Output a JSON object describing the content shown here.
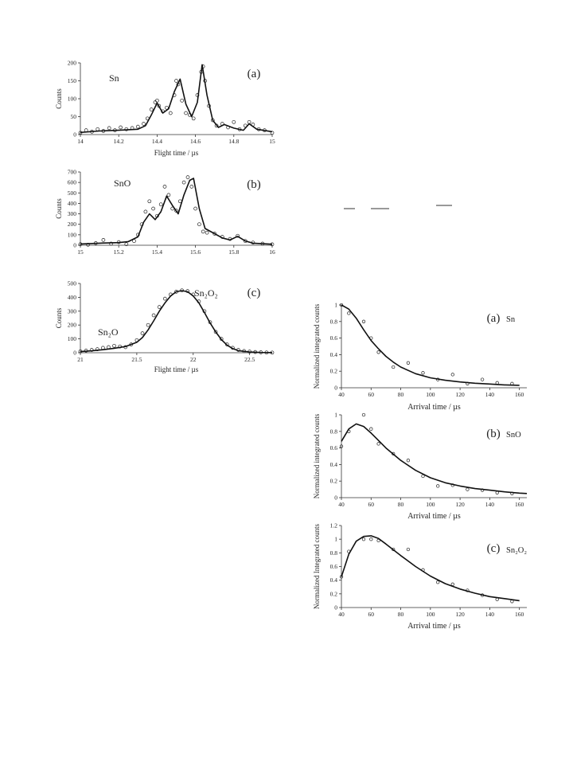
{
  "chart_data": [
    {
      "id": "tof_sn",
      "type": "scatter",
      "panel_label": "(a)",
      "species_label": "Sn",
      "xlabel": "Flight time / µs",
      "ylabel": "Counts",
      "xlim": [
        14,
        15
      ],
      "ylim": [
        0,
        200
      ],
      "xticks": [
        "14",
        "14.2",
        "14.4",
        "14.6",
        "14.8",
        "15"
      ],
      "yticks": [
        "0",
        "50",
        "100",
        "150",
        "200"
      ],
      "series": [
        {
          "style": "markers",
          "x": [
            14.0,
            14.03,
            14.06,
            14.09,
            14.12,
            14.15,
            14.18,
            14.21,
            14.24,
            14.27,
            14.3,
            14.33,
            14.35,
            14.37,
            14.39,
            14.4,
            14.41,
            14.43,
            14.45,
            14.47,
            14.49,
            14.5,
            14.51,
            14.53,
            14.55,
            14.57,
            14.59,
            14.61,
            14.63,
            14.64,
            14.65,
            14.67,
            14.69,
            14.71,
            14.74,
            14.77,
            14.8,
            14.83,
            14.86,
            14.88,
            14.9,
            14.93,
            14.96,
            15.0
          ],
          "y": [
            5,
            12,
            8,
            15,
            10,
            18,
            12,
            20,
            15,
            18,
            22,
            30,
            45,
            70,
            90,
            95,
            80,
            65,
            75,
            60,
            110,
            150,
            140,
            95,
            60,
            55,
            45,
            110,
            175,
            190,
            150,
            80,
            40,
            25,
            30,
            20,
            35,
            15,
            25,
            35,
            28,
            15,
            12,
            5
          ]
        },
        {
          "style": "line",
          "x": [
            14.0,
            14.1,
            14.2,
            14.3,
            14.34,
            14.37,
            14.4,
            14.43,
            14.46,
            14.49,
            14.52,
            14.55,
            14.58,
            14.61,
            14.635,
            14.66,
            14.69,
            14.72,
            14.75,
            14.8,
            14.85,
            14.88,
            14.92,
            15.0
          ],
          "y": [
            6,
            10,
            12,
            15,
            25,
            55,
            88,
            60,
            72,
            120,
            155,
            85,
            50,
            90,
            195,
            110,
            40,
            20,
            28,
            18,
            12,
            30,
            15,
            8
          ]
        }
      ]
    },
    {
      "id": "tof_sno",
      "type": "scatter",
      "panel_label": "(b)",
      "species_label": "SnO",
      "xlabel": "",
      "ylabel": "Counts",
      "xlim": [
        15,
        16
      ],
      "ylim": [
        0,
        700
      ],
      "xticks": [
        "15",
        "15.2",
        "15.4",
        "15.6",
        "15.8",
        "16"
      ],
      "yticks": [
        "0",
        "100",
        "200",
        "300",
        "400",
        "500",
        "600",
        "700"
      ],
      "series": [
        {
          "style": "markers",
          "x": [
            15.0,
            15.04,
            15.08,
            15.12,
            15.16,
            15.2,
            15.24,
            15.28,
            15.3,
            15.32,
            15.34,
            15.36,
            15.38,
            15.4,
            15.42,
            15.44,
            15.46,
            15.48,
            15.5,
            15.52,
            15.54,
            15.56,
            15.58,
            15.6,
            15.62,
            15.64,
            15.66,
            15.7,
            15.74,
            15.78,
            15.82,
            15.86,
            15.9,
            15.95,
            16.0
          ],
          "y": [
            10,
            5,
            20,
            50,
            15,
            30,
            10,
            40,
            100,
            200,
            320,
            420,
            350,
            280,
            390,
            560,
            480,
            350,
            330,
            420,
            600,
            650,
            560,
            350,
            200,
            130,
            120,
            110,
            80,
            60,
            90,
            40,
            25,
            15,
            8
          ]
        },
        {
          "style": "line",
          "x": [
            15.0,
            15.1,
            15.2,
            15.25,
            15.3,
            15.33,
            15.36,
            15.39,
            15.42,
            15.45,
            15.48,
            15.51,
            15.54,
            15.57,
            15.59,
            15.62,
            15.65,
            15.7,
            15.74,
            15.78,
            15.82,
            15.86,
            15.9,
            16.0
          ],
          "y": [
            12,
            20,
            25,
            35,
            80,
            220,
            300,
            245,
            320,
            470,
            380,
            300,
            480,
            620,
            640,
            350,
            160,
            110,
            70,
            50,
            85,
            40,
            20,
            10
          ]
        }
      ]
    },
    {
      "id": "tof_sn2o2",
      "type": "scatter",
      "panel_label": "(c)",
      "species_label": "Sn₂O₂",
      "species_label_2": "Sn₂O",
      "xlabel": "Flight time / µs",
      "ylabel": "Counts",
      "xlim": [
        21,
        22.7
      ],
      "ylim": [
        0,
        500
      ],
      "xticks": [
        "21",
        "21.5",
        "22",
        "22.5"
      ],
      "yticks": [
        "0",
        "100",
        "200",
        "300",
        "400",
        "500"
      ],
      "series": [
        {
          "style": "markers",
          "x": [
            21.0,
            21.05,
            21.1,
            21.15,
            21.2,
            21.25,
            21.3,
            21.35,
            21.4,
            21.45,
            21.5,
            21.55,
            21.6,
            21.65,
            21.7,
            21.75,
            21.8,
            21.85,
            21.9,
            21.95,
            22.0,
            22.05,
            22.1,
            22.15,
            22.2,
            22.25,
            22.3,
            22.35,
            22.4,
            22.45,
            22.5,
            22.55,
            22.6,
            22.65,
            22.7
          ],
          "y": [
            10,
            15,
            20,
            25,
            35,
            40,
            50,
            45,
            40,
            60,
            90,
            140,
            200,
            270,
            330,
            390,
            420,
            440,
            450,
            445,
            420,
            370,
            300,
            220,
            150,
            100,
            60,
            35,
            20,
            12,
            8,
            5,
            3,
            2,
            1
          ]
        },
        {
          "style": "line",
          "x": [
            21.0,
            21.1,
            21.2,
            21.3,
            21.4,
            21.5,
            21.55,
            21.6,
            21.65,
            21.7,
            21.75,
            21.8,
            21.85,
            21.9,
            21.95,
            22.0,
            22.05,
            22.1,
            22.15,
            22.2,
            22.25,
            22.3,
            22.35,
            22.4,
            22.5,
            22.6,
            22.7
          ],
          "y": [
            8,
            14,
            22,
            32,
            45,
            75,
            110,
            165,
            230,
            300,
            360,
            410,
            440,
            448,
            440,
            410,
            360,
            290,
            215,
            150,
            95,
            55,
            30,
            15,
            6,
            2,
            1
          ]
        }
      ]
    },
    {
      "id": "arr_sn",
      "type": "scatter",
      "panel_label": "(a)",
      "species_label": "Sn",
      "xlabel": "Arrival time / µs",
      "ylabel": "Normalized integrated counts",
      "xlim": [
        40,
        165
      ],
      "ylim": [
        0,
        1
      ],
      "xticks": [
        "40",
        "60",
        "80",
        "100",
        "120",
        "140",
        "160"
      ],
      "yticks": [
        "0",
        "0.2",
        "0.4",
        "0.6",
        "0.8",
        "1"
      ],
      "series": [
        {
          "style": "markers",
          "x": [
            40,
            45,
            55,
            60,
            65,
            75,
            85,
            95,
            105,
            115,
            125,
            135,
            145,
            155
          ],
          "y": [
            1.0,
            0.9,
            0.8,
            0.6,
            0.43,
            0.25,
            0.3,
            0.18,
            0.1,
            0.16,
            0.05,
            0.1,
            0.06,
            0.05
          ]
        },
        {
          "style": "line",
          "x": [
            40,
            45,
            50,
            55,
            60,
            65,
            70,
            75,
            80,
            90,
            100,
            110,
            120,
            130,
            140,
            150,
            160
          ],
          "y": [
            1.0,
            0.95,
            0.84,
            0.7,
            0.57,
            0.47,
            0.38,
            0.31,
            0.25,
            0.17,
            0.12,
            0.09,
            0.07,
            0.055,
            0.045,
            0.035,
            0.03
          ]
        }
      ]
    },
    {
      "id": "arr_sno",
      "type": "scatter",
      "panel_label": "(b)",
      "species_label": "SnO",
      "xlabel": "Arrival time / µs",
      "ylabel": "Normalized integrated counts",
      "xlim": [
        40,
        165
      ],
      "ylim": [
        0,
        1
      ],
      "xticks": [
        "40",
        "60",
        "80",
        "100",
        "120",
        "140",
        "160"
      ],
      "yticks": [
        "0",
        "0.2",
        "0.4",
        "0.6",
        "0.8",
        "1"
      ],
      "series": [
        {
          "style": "markers",
          "x": [
            40,
            45,
            55,
            60,
            65,
            75,
            85,
            95,
            105,
            115,
            125,
            135,
            145,
            155
          ],
          "y": [
            0.62,
            0.8,
            1.0,
            0.83,
            0.65,
            0.53,
            0.45,
            0.26,
            0.14,
            0.15,
            0.1,
            0.09,
            0.06,
            0.05
          ]
        },
        {
          "style": "line",
          "x": [
            40,
            45,
            50,
            55,
            60,
            65,
            70,
            80,
            90,
            100,
            110,
            120,
            130,
            140,
            150,
            160,
            165
          ],
          "y": [
            0.68,
            0.83,
            0.89,
            0.86,
            0.78,
            0.69,
            0.6,
            0.45,
            0.33,
            0.24,
            0.18,
            0.14,
            0.11,
            0.09,
            0.07,
            0.055,
            0.05
          ]
        }
      ]
    },
    {
      "id": "arr_sn2o2",
      "type": "scatter",
      "panel_label": "(c)",
      "species_label": "Sn₂O₂",
      "xlabel": "Arrival time / µs",
      "ylabel": "Normalized Integrated counts",
      "xlim": [
        40,
        165
      ],
      "ylim": [
        0,
        1.2
      ],
      "xticks": [
        "40",
        "60",
        "80",
        "100",
        "120",
        "140",
        "160"
      ],
      "yticks": [
        "0",
        "0.2",
        "0.4",
        "0.6",
        "0.8",
        "1",
        "1.2"
      ],
      "series": [
        {
          "style": "markers",
          "x": [
            40,
            45,
            55,
            60,
            65,
            75,
            85,
            95,
            105,
            115,
            125,
            135,
            145,
            155
          ],
          "y": [
            0.45,
            0.82,
            1.0,
            1.0,
            0.98,
            0.85,
            0.85,
            0.55,
            0.37,
            0.34,
            0.25,
            0.18,
            0.12,
            0.09
          ]
        },
        {
          "style": "line",
          "x": [
            40,
            45,
            50,
            55,
            60,
            65,
            70,
            80,
            90,
            100,
            110,
            120,
            130,
            140,
            150,
            160
          ],
          "y": [
            0.45,
            0.78,
            0.97,
            1.04,
            1.05,
            1.01,
            0.93,
            0.76,
            0.6,
            0.46,
            0.35,
            0.27,
            0.21,
            0.16,
            0.13,
            0.1
          ]
        }
      ]
    }
  ]
}
